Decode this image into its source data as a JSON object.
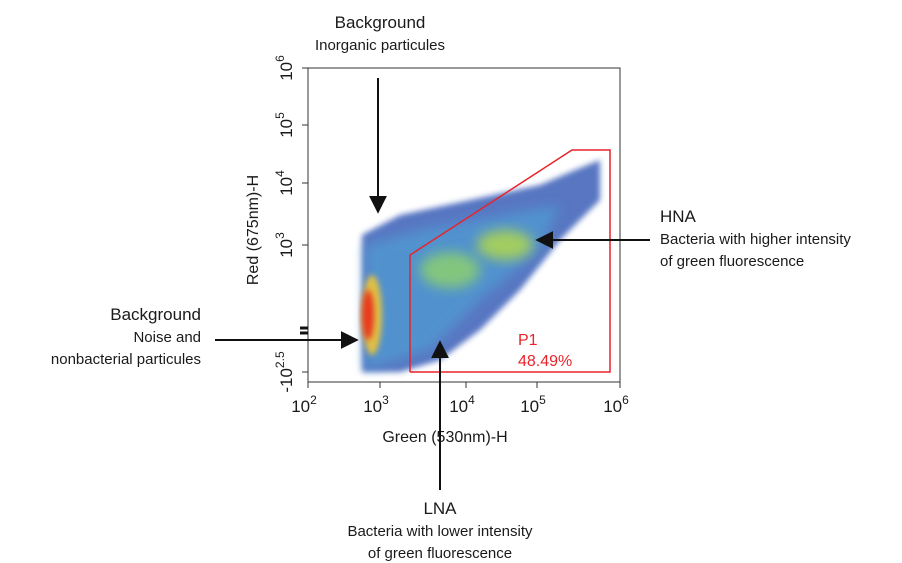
{
  "plot": {
    "x_axis_title": "Green (530nm)-H",
    "y_axis_title": "Red (675nm)-H",
    "x_ticks": [
      {
        "base": "10",
        "exp": "2"
      },
      {
        "base": "10",
        "exp": "3"
      },
      {
        "base": "10",
        "exp": "4"
      },
      {
        "base": "10",
        "exp": "5"
      },
      {
        "base": "10",
        "exp": "6"
      }
    ],
    "y_ticks": [
      {
        "base": "-10",
        "exp": "2.5"
      },
      {
        "base": "10",
        "exp": "3"
      },
      {
        "base": "10",
        "exp": "4"
      },
      {
        "base": "10",
        "exp": "5"
      },
      {
        "base": "10",
        "exp": "6"
      }
    ],
    "gate": {
      "name": "P1",
      "percent": "48.49%"
    }
  },
  "annotations": {
    "background_top": {
      "title": "Background",
      "lines": [
        "Inorganic particules"
      ]
    },
    "background_left": {
      "title": "Background",
      "lines": [
        "Noise and",
        "nonbacterial particules"
      ]
    },
    "hna": {
      "title": "HNA",
      "lines": [
        "Bacteria with higher intensity",
        "of green fluorescence"
      ]
    },
    "lna": {
      "title": "LNA",
      "lines": [
        "Bacteria with lower intensity",
        "of green fluorescence"
      ]
    }
  }
}
